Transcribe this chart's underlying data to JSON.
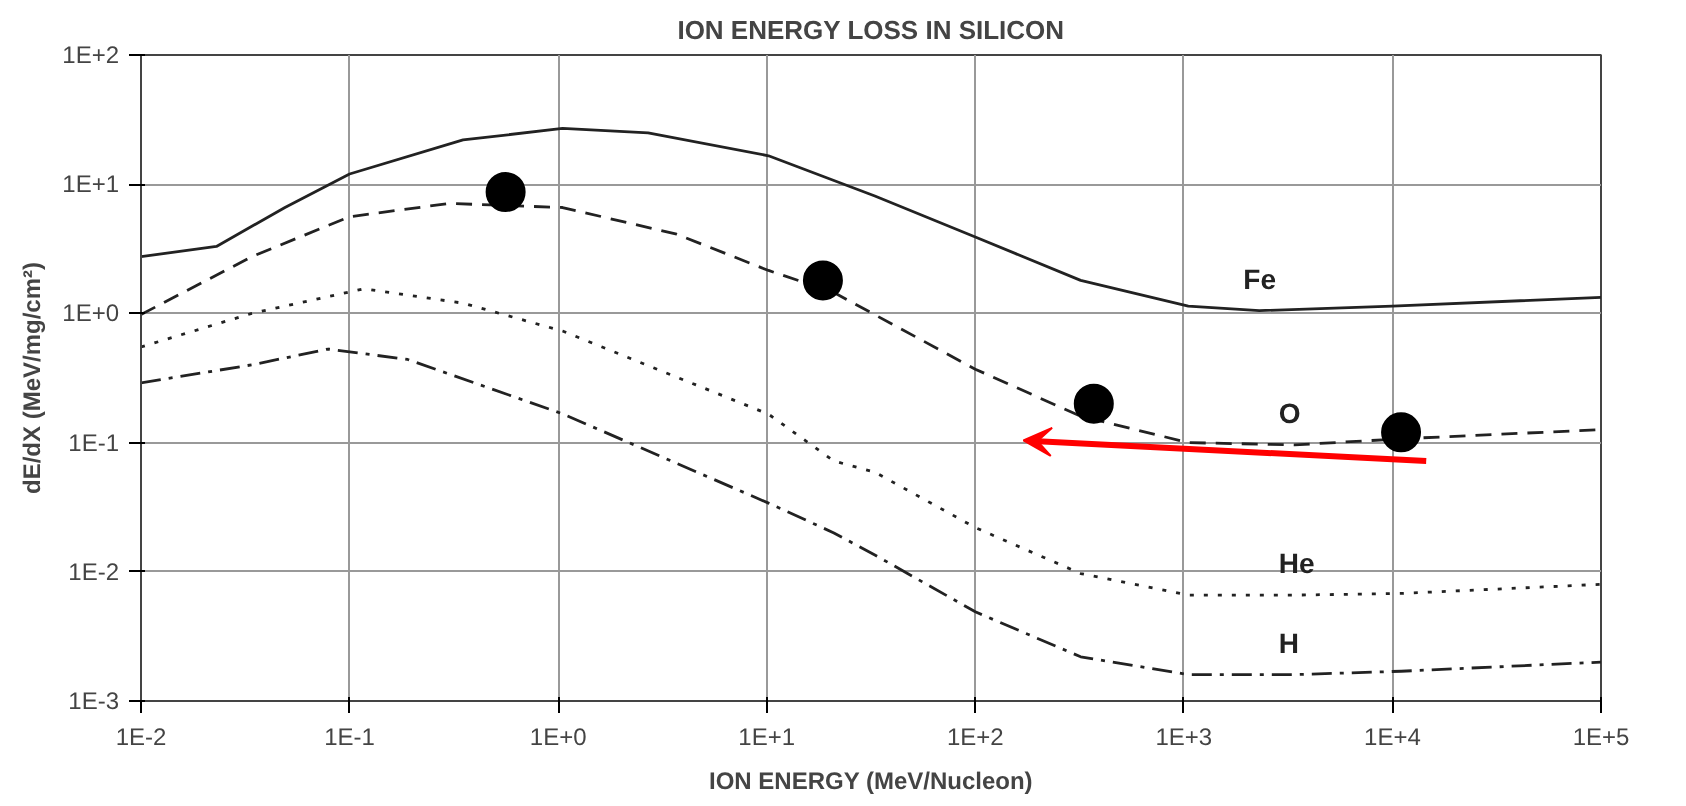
{
  "chart_data": {
    "type": "line",
    "title": "ION ENERGY LOSS IN SILICON",
    "xlabel": "ION ENERGY (MeV/Nucleon)",
    "ylabel": "dE/dX (MeV/mg/cm²)",
    "log": "xy",
    "grid": true,
    "xlim": [
      0.01,
      100000
    ],
    "ylim": [
      0.001,
      100
    ],
    "xticks": [
      {
        "value": 0.01,
        "label": "1E-2"
      },
      {
        "value": 0.1,
        "label": "1E-1"
      },
      {
        "value": 1,
        "label": "1E+0"
      },
      {
        "value": 10,
        "label": "1E+1"
      },
      {
        "value": 100,
        "label": "1E+2"
      },
      {
        "value": 1000,
        "label": "1E+3"
      },
      {
        "value": 10000,
        "label": "1E+4"
      },
      {
        "value": 100000,
        "label": "1E+5"
      }
    ],
    "yticks": [
      {
        "value": 0.001,
        "label": "1E-3"
      },
      {
        "value": 0.01,
        "label": "1E-2"
      },
      {
        "value": 0.1,
        "label": "1E-1"
      },
      {
        "value": 1,
        "label": "1E+0"
      },
      {
        "value": 10,
        "label": "1E+1"
      },
      {
        "value": 100,
        "label": "1E+2"
      }
    ],
    "series": [
      {
        "name": "Fe",
        "line_style": "solid",
        "marker": "none",
        "color": "#222222",
        "x": [
          0.01,
          0.023,
          0.049,
          0.1,
          0.35,
          1.05,
          2.7,
          10.2,
          33,
          100,
          320,
          1050,
          2300,
          10000,
          100000
        ],
        "values": [
          2.75,
          3.3,
          6.6,
          12,
          22,
          27,
          25,
          16.6,
          8.1,
          3.9,
          1.8,
          1.14,
          1.05,
          1.14,
          1.33
        ]
      },
      {
        "name": "O",
        "line_style": "dashed",
        "marker": "none",
        "color": "#222222",
        "x": [
          0.01,
          0.034,
          0.1,
          0.3,
          1.05,
          3.7,
          10.2,
          21,
          100,
          320,
          1050,
          3400,
          11000,
          100000
        ],
        "values": [
          0.98,
          2.75,
          5.6,
          7.1,
          6.6,
          4.1,
          2.15,
          1.45,
          0.37,
          0.16,
          0.1,
          0.096,
          0.107,
          0.126
        ]
      },
      {
        "name": "He",
        "line_style": "dotted",
        "marker": "none",
        "color": "#222222",
        "x": [
          0.01,
          0.034,
          0.117,
          0.35,
          1.05,
          10.2,
          21,
          33,
          100,
          320,
          1050,
          3400,
          11000,
          100000
        ],
        "values": [
          0.55,
          1.0,
          1.55,
          1.2,
          0.73,
          0.166,
          0.072,
          0.059,
          0.022,
          0.0097,
          0.0066,
          0.0066,
          0.0068,
          0.008
        ]
      },
      {
        "name": "H",
        "line_style": "dashdot",
        "marker": "none",
        "color": "#222222",
        "x": [
          0.01,
          0.034,
          0.079,
          0.19,
          1.05,
          10.2,
          21,
          33,
          100,
          320,
          1050,
          3400,
          11000,
          100000
        ],
        "values": [
          0.29,
          0.4,
          0.53,
          0.44,
          0.167,
          0.034,
          0.02,
          0.0135,
          0.0049,
          0.0022,
          0.0016,
          0.0016,
          0.0017,
          0.002
        ]
      },
      {
        "type": "scatter",
        "marker": "circle",
        "color": "#000000",
        "x": [
          0.56,
          18.6,
          370,
          11000
        ],
        "values": [
          8.7,
          1.8,
          0.2,
          0.12
        ]
      }
    ]
  }
}
